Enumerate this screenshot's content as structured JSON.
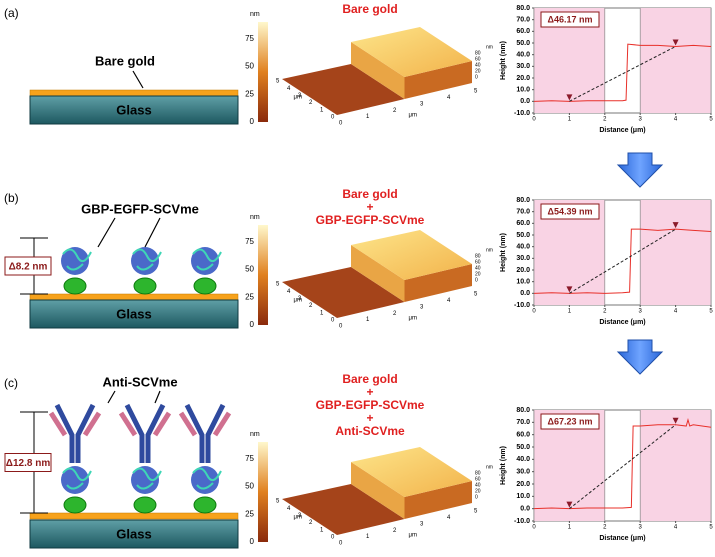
{
  "panels": [
    {
      "label": "(a)",
      "schematic": {
        "layer_label": "Bare gold",
        "substrate": "Glass"
      },
      "afm": {
        "title": [
          "Bare gold"
        ],
        "colorbar": {
          "unit": "nm",
          "lim": [
            0,
            90
          ],
          "ticks": [
            0,
            25,
            50,
            75
          ]
        },
        "x_ticks": [
          0,
          1,
          2,
          3,
          4,
          5
        ],
        "y_ticks": [
          5,
          4,
          3,
          2,
          1,
          0
        ],
        "z_ticks": [
          80,
          60,
          40,
          20,
          0
        ],
        "lateral_unit": "μm",
        "z_unit": "nm"
      },
      "profile": {
        "type": "line",
        "annotation": "Δ46.17 nm",
        "xlabel": "Distance (μm)",
        "ylabel": "Height (nm)",
        "xlim": [
          0,
          5
        ],
        "xticks": [
          0,
          1,
          2,
          3,
          4,
          5
        ],
        "ylim": [
          -10,
          80
        ],
        "yticks": [
          {
            "value": -10,
            "label": "-10.0"
          },
          {
            "value": 0,
            "label": "0.0"
          },
          {
            "value": 10,
            "label": "10.0"
          },
          {
            "value": 20,
            "label": "20.0"
          },
          {
            "value": 30,
            "label": "30.0"
          },
          {
            "value": 40,
            "label": "40.0"
          },
          {
            "value": 50,
            "label": "50.0"
          },
          {
            "value": 60,
            "label": "60.0"
          },
          {
            "value": 70,
            "label": "70.0"
          },
          {
            "value": 80,
            "label": "80.0"
          }
        ],
        "shaded": [
          [
            0,
            2
          ],
          [
            3,
            5
          ]
        ],
        "color": "#e8302a",
        "x": [
          0,
          0.5,
          1,
          1.5,
          2,
          2.5,
          2.6,
          2.65,
          3,
          3.5,
          4,
          4.5,
          5
        ],
        "values": [
          0,
          0.5,
          0,
          0.5,
          0.5,
          0.5,
          1,
          49,
          48,
          48,
          47,
          48,
          47
        ],
        "markers": {
          "x": [
            1,
            4
          ],
          "values": [
            0,
            47
          ]
        }
      }
    },
    {
      "label": "(b)",
      "schematic": {
        "layer_label": "GBP-EGFP-SCVme",
        "thickness": "Δ8.2 nm",
        "substrate": "Glass"
      },
      "afm": {
        "title": [
          "Bare gold",
          "+",
          "GBP-EGFP-SCVme"
        ],
        "colorbar": {
          "unit": "nm",
          "lim": [
            0,
            90
          ],
          "ticks": [
            0,
            25,
            50,
            75
          ]
        },
        "x_ticks": [
          0,
          1,
          2,
          3,
          4,
          5
        ],
        "y_ticks": [
          5,
          4,
          3,
          2,
          1,
          0
        ],
        "z_ticks": [
          80,
          60,
          40,
          20,
          0
        ],
        "lateral_unit": "μm",
        "z_unit": "nm"
      },
      "profile": {
        "type": "line",
        "annotation": "Δ54.39 nm",
        "xlabel": "Distance (μm)",
        "ylabel": "Height (nm)",
        "xlim": [
          0,
          5
        ],
        "xticks": [
          0,
          1,
          2,
          3,
          4,
          5
        ],
        "ylim": [
          -10,
          80
        ],
        "yticks": [
          {
            "value": -10,
            "label": "-10.0"
          },
          {
            "value": 0,
            "label": "0.0"
          },
          {
            "value": 10,
            "label": "10.0"
          },
          {
            "value": 20,
            "label": "20.0"
          },
          {
            "value": 30,
            "label": "30.0"
          },
          {
            "value": 40,
            "label": "40.0"
          },
          {
            "value": 50,
            "label": "50.0"
          },
          {
            "value": 60,
            "label": "60.0"
          },
          {
            "value": 70,
            "label": "70.0"
          },
          {
            "value": 80,
            "label": "80.0"
          }
        ],
        "shaded": [
          [
            0,
            2
          ],
          [
            3,
            5
          ]
        ],
        "color": "#e8302a",
        "x": [
          0,
          0.5,
          1,
          1.5,
          2,
          2.5,
          2.7,
          2.75,
          3,
          3.5,
          4,
          4.5,
          5
        ],
        "values": [
          0,
          0.5,
          0,
          0.5,
          0,
          0.5,
          1,
          55,
          55,
          54,
          55,
          54,
          53
        ],
        "markers": {
          "x": [
            1,
            4
          ],
          "values": [
            0,
            55
          ]
        }
      }
    },
    {
      "label": "(c)",
      "schematic": {
        "layer_label": "Anti-SCVme",
        "thickness": "Δ12.8 nm",
        "substrate": "Glass"
      },
      "afm": {
        "title": [
          "Bare gold",
          "+",
          "GBP-EGFP-SCVme",
          "+",
          "Anti-SCVme"
        ],
        "colorbar": {
          "unit": "nm",
          "lim": [
            0,
            90
          ],
          "ticks": [
            0,
            25,
            50,
            75
          ]
        },
        "x_ticks": [
          0,
          1,
          2,
          3,
          4,
          5
        ],
        "y_ticks": [
          5,
          4,
          3,
          2,
          1,
          0
        ],
        "z_ticks": [
          80,
          60,
          40,
          20,
          0
        ],
        "lateral_unit": "μm",
        "z_unit": "nm"
      },
      "profile": {
        "type": "line",
        "annotation": "Δ67.23 nm",
        "xlabel": "Distance (μm)",
        "ylabel": "Height (nm)",
        "xlim": [
          0,
          5
        ],
        "xticks": [
          0,
          1,
          2,
          3,
          4,
          5
        ],
        "ylim": [
          -10,
          80
        ],
        "yticks": [
          {
            "value": -10,
            "label": "-10.0"
          },
          {
            "value": 0,
            "label": "0.0"
          },
          {
            "value": 10,
            "label": "10.0"
          },
          {
            "value": 20,
            "label": "20.0"
          },
          {
            "value": 30,
            "label": "30.0"
          },
          {
            "value": 40,
            "label": "40.0"
          },
          {
            "value": 50,
            "label": "50.0"
          },
          {
            "value": 60,
            "label": "60.0"
          },
          {
            "value": 70,
            "label": "70.0"
          },
          {
            "value": 80,
            "label": "80.0"
          }
        ],
        "shaded": [
          [
            0,
            2
          ],
          [
            3,
            5
          ]
        ],
        "color": "#e8302a",
        "x": [
          0,
          0.5,
          1,
          1.5,
          2,
          2.5,
          2.75,
          2.8,
          3,
          3.5,
          4,
          4.3,
          4.35,
          4.4,
          4.5,
          5
        ],
        "values": [
          0,
          0.5,
          0,
          0.5,
          0.5,
          0.5,
          1,
          67,
          67,
          68,
          68,
          67,
          72,
          67,
          68,
          66
        ],
        "markers": {
          "x": [
            1,
            4
          ],
          "values": [
            0,
            68
          ]
        }
      }
    }
  ]
}
